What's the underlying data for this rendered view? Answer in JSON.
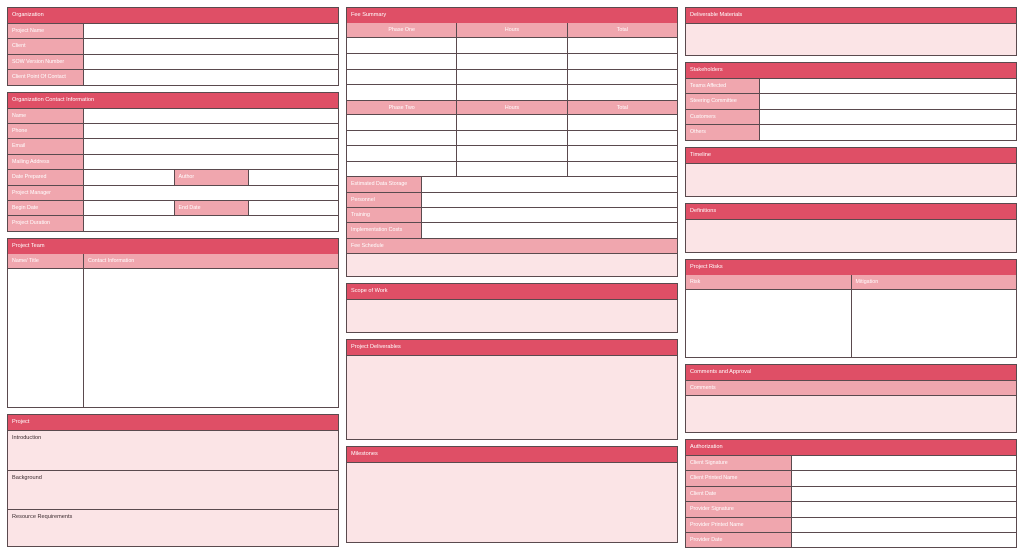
{
  "organization": {
    "title": "Organization",
    "rows": [
      "Project Name",
      "Client",
      "SOW Version Number",
      "Client Point Of Contact"
    ]
  },
  "contact": {
    "title": "Organization Contact Information",
    "name": "Name",
    "phone": "Phone",
    "email": "Email",
    "mailing": "Mailing Address",
    "date_prepared": "Date Prepared",
    "author": "Author",
    "project_manager": "Project Manager",
    "begin_date": "Begin Date",
    "end_date": "End Date",
    "duration": "Project Duration"
  },
  "team": {
    "title": "Project Team",
    "col1": "Name/ Title",
    "col2": "Contact Information"
  },
  "project": {
    "title": "Project",
    "sections": [
      "Introduction",
      "Background",
      "Resource Requirements"
    ]
  },
  "fee": {
    "title": "Fee Summary",
    "phase1": "Phase One",
    "phase2": "Phase Two",
    "hours": "Hours",
    "total": "Total",
    "costs": [
      "Estimated Data Storage",
      "Personnel",
      "Training",
      "Implementation Costs"
    ],
    "schedule": "Fee Schedule"
  },
  "scope": {
    "title": "Scope of Work"
  },
  "deliverables": {
    "title": "Project Deliverables"
  },
  "milestones": {
    "title": "Milestones"
  },
  "materials": {
    "title": "Deliverable Materials"
  },
  "stakeholders": {
    "title": "Stakeholders",
    "rows": [
      "Teams Affected",
      "Steering Committee",
      "Customers",
      "Others"
    ]
  },
  "timeline": {
    "title": "Timeline"
  },
  "definitions": {
    "title": "Definitions"
  },
  "risks": {
    "title": "Project Risks",
    "col1": "Risk",
    "col2": "Mitigation"
  },
  "comments": {
    "title": "Comments and Approval",
    "sub": "Comments"
  },
  "auth": {
    "title": "Authorization",
    "rows": [
      "Client Signature",
      "Client Printed Name",
      "Client Date",
      "Provider Signature",
      "Provider Printed Name",
      "Provider Date"
    ]
  },
  "colors": {
    "header": "#df4f66",
    "label": "#f0a6ae",
    "body": "#fbe4e6"
  }
}
